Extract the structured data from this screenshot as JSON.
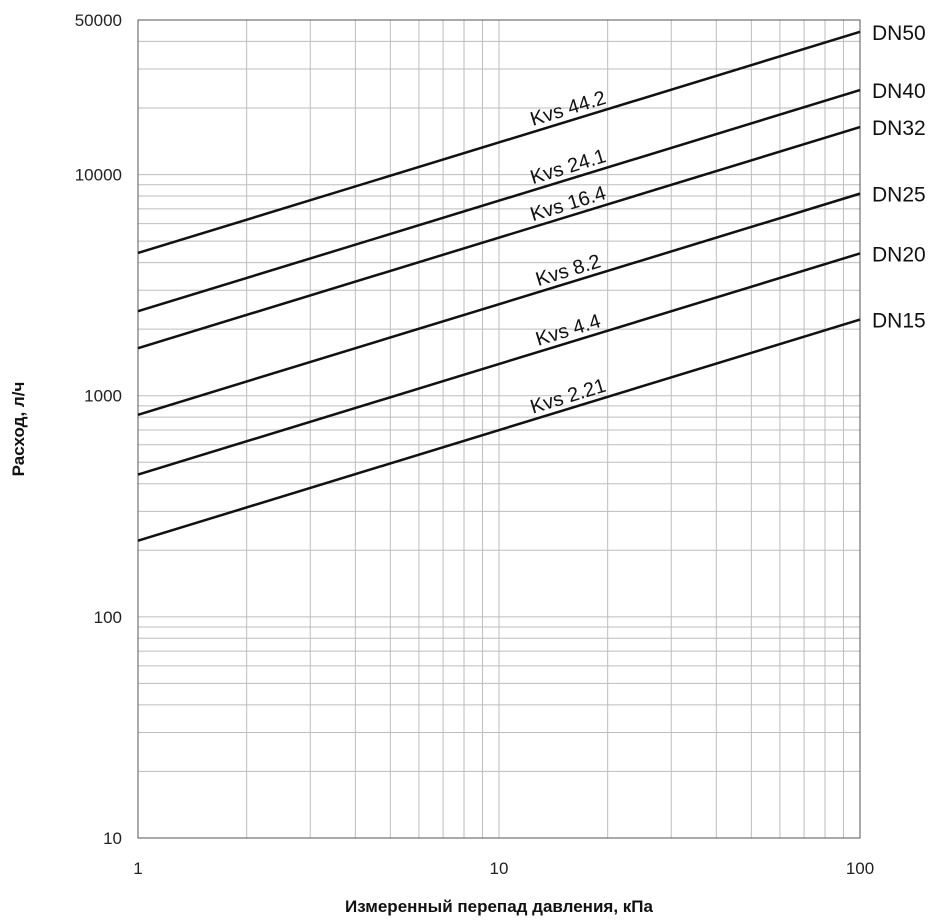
{
  "chart_data": {
    "type": "line",
    "xlabel": "Измеренный перепад давления, кПа",
    "ylabel": "Расход, л/ч",
    "xscale": "log",
    "yscale": "log",
    "xlim": [
      1,
      100
    ],
    "ylim": [
      10,
      50000
    ],
    "xticks": [
      {
        "value": 1,
        "label": "1"
      },
      {
        "value": 10,
        "label": "10"
      },
      {
        "value": 100,
        "label": "100"
      }
    ],
    "yticks": [
      {
        "value": 10,
        "label": "10"
      },
      {
        "value": 100,
        "label": "100"
      },
      {
        "value": 1000,
        "label": "1000"
      },
      {
        "value": 10000,
        "label": "10000"
      },
      {
        "value": 50000,
        "label": "50000"
      }
    ],
    "grid": true,
    "line_color": "#111111",
    "grid_color": "#bdbdbd",
    "series": [
      {
        "name": "DN50",
        "annotation": "Kvs 44.2",
        "x": [
          1,
          100
        ],
        "y": [
          4420,
          44200
        ]
      },
      {
        "name": "DN40",
        "annotation": "Kvs 24.1",
        "x": [
          1,
          100
        ],
        "y": [
          2410,
          24100
        ]
      },
      {
        "name": "DN32",
        "annotation": "Kvs 16.4",
        "x": [
          1,
          100
        ],
        "y": [
          1640,
          16400
        ]
      },
      {
        "name": "DN25",
        "annotation": "Kvs 8.2",
        "x": [
          1,
          100
        ],
        "y": [
          820,
          8200
        ]
      },
      {
        "name": "DN20",
        "annotation": "Kvs 4.4",
        "x": [
          1,
          100
        ],
        "y": [
          440,
          4400
        ]
      },
      {
        "name": "DN15",
        "annotation": "Kvs 2.21",
        "x": [
          1,
          100
        ],
        "y": [
          221,
          2210
        ]
      }
    ]
  }
}
